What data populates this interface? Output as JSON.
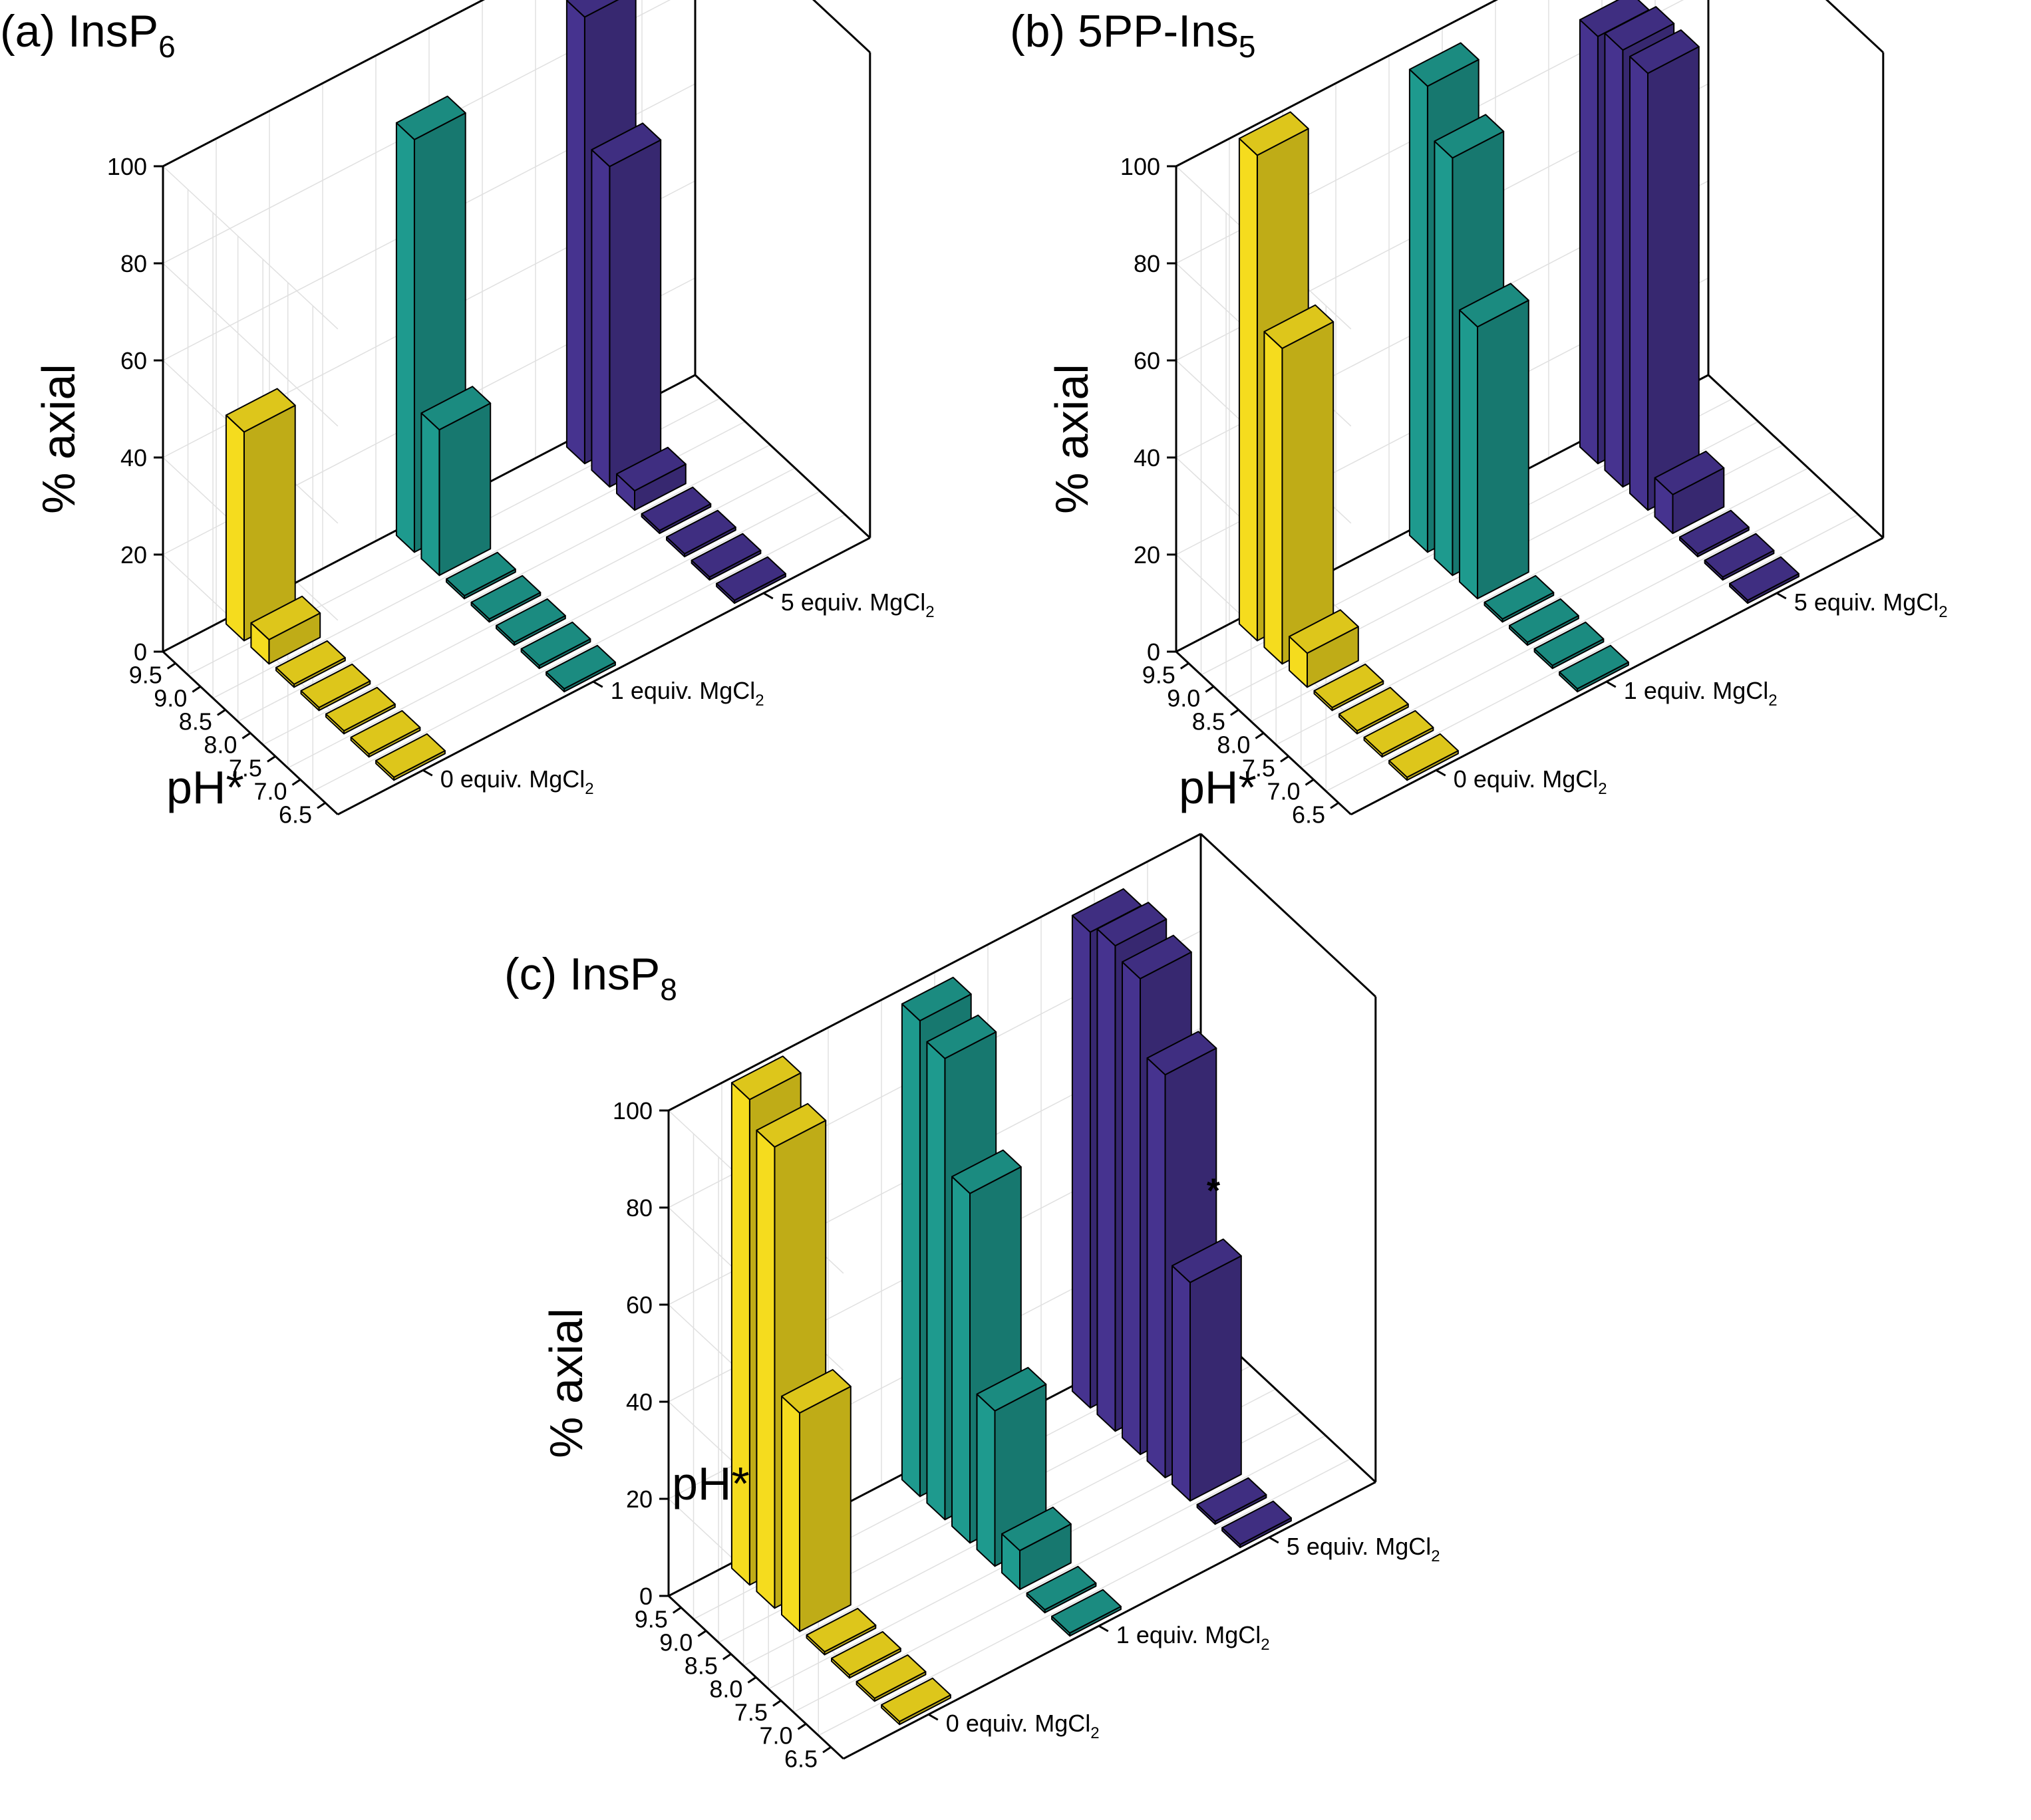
{
  "chart_data": [
    {
      "id": "a",
      "type": "bar3d",
      "title": "(a) InsP",
      "title_sub": "6",
      "ylabel": "% axial",
      "xlabel": "pH*",
      "ylim": [
        0,
        100
      ],
      "yticks": [
        "0",
        "20",
        "40",
        "60",
        "80",
        "100"
      ],
      "ph_ticks": [
        "9.5",
        "9.0",
        "8.5",
        "8.0",
        "7.5",
        "7.0",
        "6.5"
      ],
      "series": [
        {
          "name": "0 equiv. MgCl",
          "name_sub": "2",
          "color": "#f5dc1e",
          "values": [
            43,
            5,
            0,
            0,
            0,
            0,
            0
          ]
        },
        {
          "name": "1 equiv. MgCl",
          "name_sub": "2",
          "color": "#1e9a8e",
          "values": [
            85,
            30,
            0,
            0,
            0,
            0,
            0
          ]
        },
        {
          "name": "5 equiv. MgCl",
          "name_sub": "2",
          "color": "#46338f",
          "values": [
            92,
            66,
            4,
            0,
            0,
            0,
            0
          ]
        }
      ]
    },
    {
      "id": "b",
      "type": "bar3d",
      "title": "(b) 5PP-Ins",
      "title_sub": "5",
      "ylabel": "% axial",
      "xlabel": "pH*",
      "ylim": [
        0,
        100
      ],
      "yticks": [
        "0",
        "20",
        "40",
        "60",
        "80",
        "100"
      ],
      "ph_ticks": [
        "9.5",
        "9.0",
        "8.5",
        "8.0",
        "7.5",
        "7.0",
        "6.5"
      ],
      "series": [
        {
          "name": "0 equiv. MgCl",
          "name_sub": "2",
          "color": "#f5dc1e",
          "values": [
            100,
            65,
            7,
            0,
            0,
            0,
            0
          ]
        },
        {
          "name": "1 equiv. MgCl",
          "name_sub": "2",
          "color": "#1e9a8e",
          "values": [
            96,
            86,
            56,
            0,
            0,
            0,
            0
          ]
        },
        {
          "name": "5 equiv. MgCl",
          "name_sub": "2",
          "color": "#46338f",
          "values": [
            88,
            90,
            90,
            8,
            0,
            0,
            0
          ]
        }
      ]
    },
    {
      "id": "c",
      "type": "bar3d",
      "title": "(c) InsP",
      "title_sub": "8",
      "ylabel": "% axial",
      "xlabel": "pH*",
      "ylim": [
        0,
        100
      ],
      "yticks": [
        "0",
        "20",
        "40",
        "60",
        "80",
        "100"
      ],
      "ph_ticks": [
        "9.5",
        "9.0",
        "8.5",
        "8.0",
        "7.5",
        "7.0",
        "6.5"
      ],
      "annotation": "*",
      "annotation_series": 2,
      "annotation_index": 4,
      "series": [
        {
          "name": "0 equiv. MgCl",
          "name_sub": "2",
          "color": "#f5dc1e",
          "values": [
            100,
            95,
            45,
            0,
            0,
            0,
            0
          ]
        },
        {
          "name": "1 equiv. MgCl",
          "name_sub": "2",
          "color": "#1e9a8e",
          "values": [
            98,
            95,
            72,
            32,
            8,
            0,
            0
          ]
        },
        {
          "name": "5 equiv. MgCl",
          "name_sub": "2",
          "color": "#46338f",
          "values": [
            98,
            100,
            98,
            83,
            45,
            0,
            0
          ]
        }
      ]
    }
  ]
}
